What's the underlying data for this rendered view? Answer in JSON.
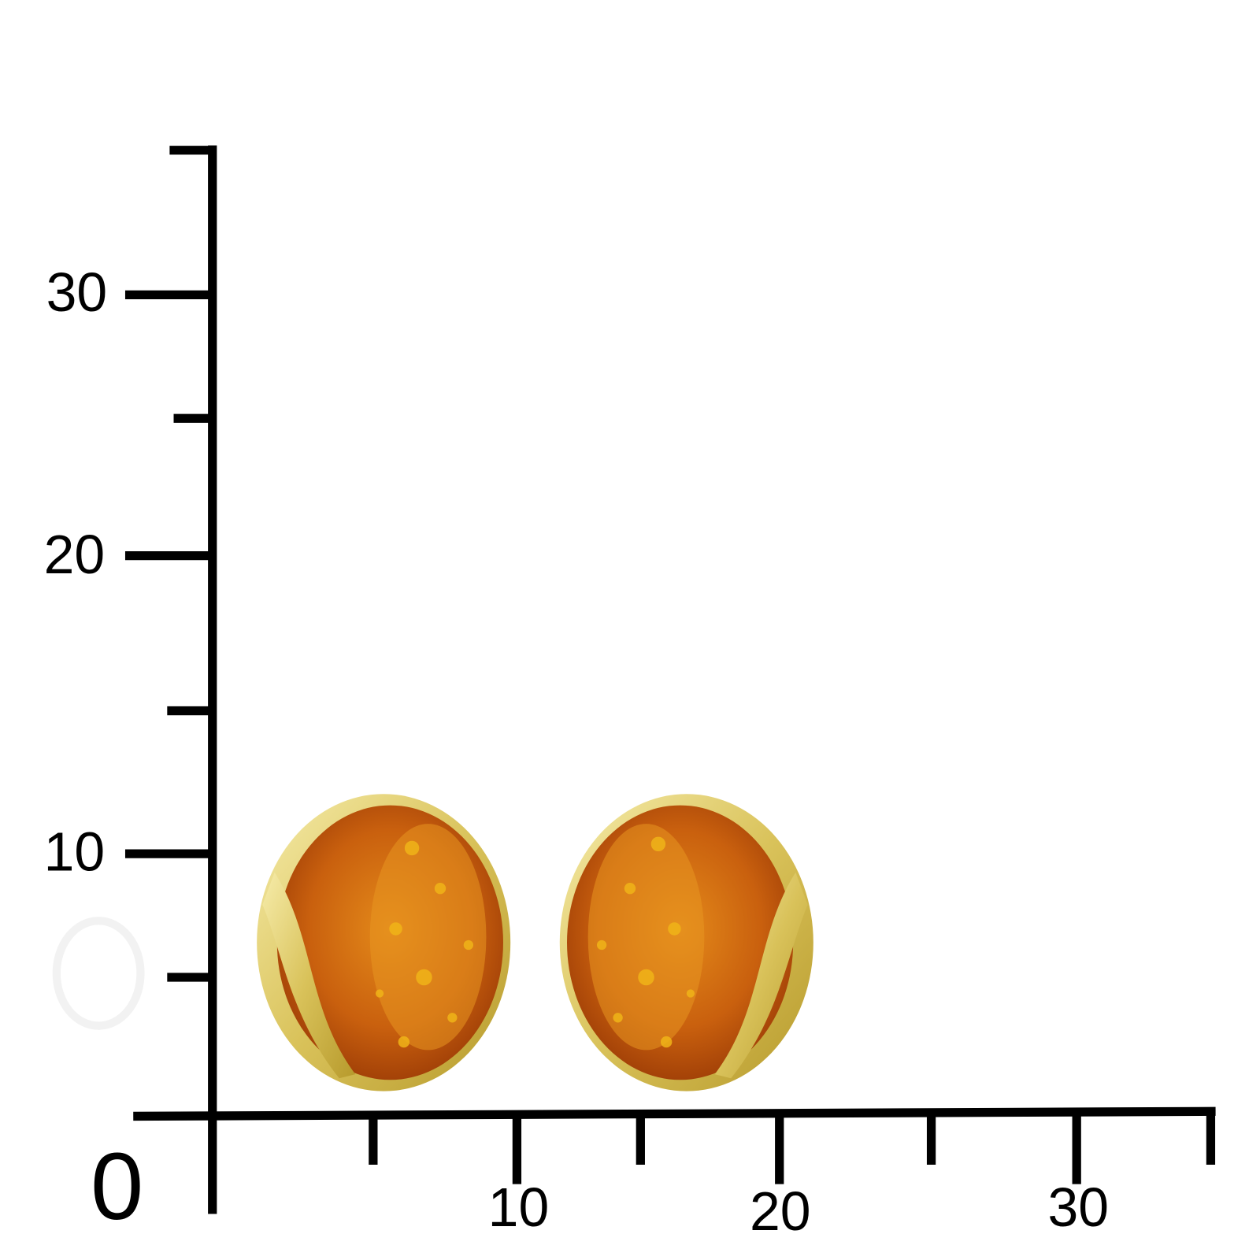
{
  "origin_label": "0",
  "y_axis": {
    "labels": [
      "30",
      "20",
      "10"
    ]
  },
  "x_axis": {
    "labels": [
      "10",
      "20",
      "30"
    ]
  }
}
